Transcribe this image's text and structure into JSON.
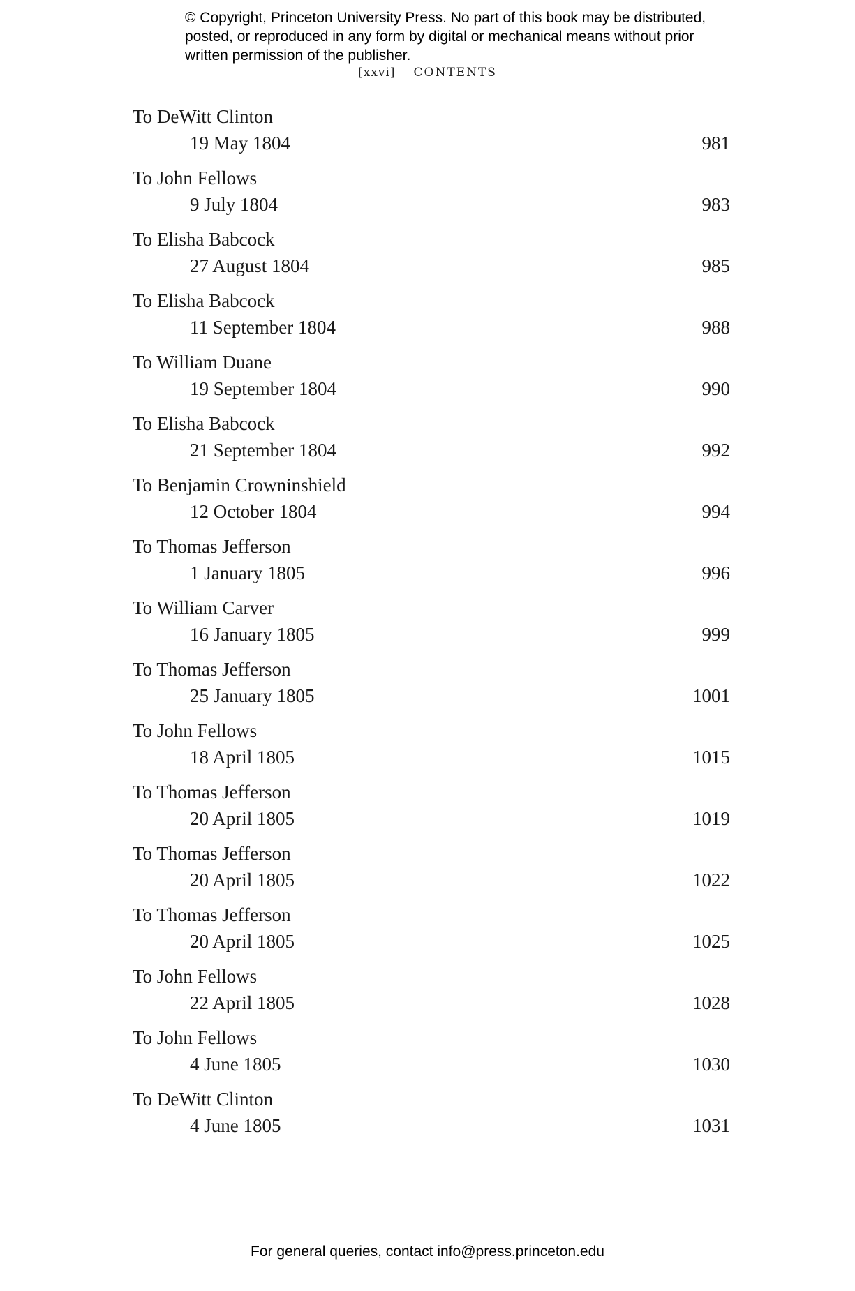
{
  "copyright": "© Copyright, Princeton University Press. No part of this book may be distributed, posted, or reproduced in any form by digital or mechanical means without prior written permission of the publisher.",
  "running_head": {
    "page": "[xxvi]",
    "title": "CONTENTS"
  },
  "entries": [
    {
      "name": "To DeWitt Clinton",
      "date": "19 May 1804",
      "page": "981"
    },
    {
      "name": "To John Fellows",
      "date": "9 July 1804",
      "page": "983"
    },
    {
      "name": "To Elisha Babcock",
      "date": "27 August 1804",
      "page": "985"
    },
    {
      "name": "To Elisha Babcock",
      "date": "11 September 1804",
      "page": "988"
    },
    {
      "name": "To William Duane",
      "date": "19 September 1804",
      "page": "990"
    },
    {
      "name": "To Elisha Babcock",
      "date": "21 September 1804",
      "page": "992"
    },
    {
      "name": "To Benjamin Crowninshield",
      "date": "12 October 1804",
      "page": "994"
    },
    {
      "name": "To Thomas Jefferson",
      "date": "1 January 1805",
      "page": "996"
    },
    {
      "name": "To William Carver",
      "date": "16 January 1805",
      "page": "999"
    },
    {
      "name": "To Thomas Jefferson",
      "date": "25 January 1805",
      "page": "1001"
    },
    {
      "name": "To John Fellows",
      "date": "18 April 1805",
      "page": "1015"
    },
    {
      "name": "To Thomas Jefferson",
      "date": "20 April 1805",
      "page": "1019"
    },
    {
      "name": "To Thomas Jefferson",
      "date": "20 April 1805",
      "page": "1022"
    },
    {
      "name": "To Thomas Jefferson",
      "date": "20 April 1805",
      "page": "1025"
    },
    {
      "name": "To John Fellows",
      "date": "22 April 1805",
      "page": "1028"
    },
    {
      "name": "To John Fellows",
      "date": "4 June 1805",
      "page": "1030"
    },
    {
      "name": "To DeWitt Clinton",
      "date": "4 June 1805",
      "page": "1031"
    }
  ],
  "footer": "For general queries, contact info@press.princeton.edu"
}
